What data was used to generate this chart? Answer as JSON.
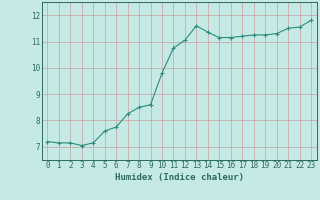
{
  "x": [
    0,
    1,
    2,
    3,
    4,
    5,
    6,
    7,
    8,
    9,
    10,
    11,
    12,
    13,
    14,
    15,
    16,
    17,
    18,
    19,
    20,
    21,
    22,
    23
  ],
  "y": [
    7.2,
    7.15,
    7.15,
    7.05,
    7.15,
    7.6,
    7.75,
    8.25,
    8.5,
    8.6,
    9.8,
    10.75,
    11.05,
    11.6,
    11.35,
    11.15,
    11.15,
    11.2,
    11.25,
    11.25,
    11.3,
    11.5,
    11.55,
    11.8
  ],
  "line_color": "#2e8b7a",
  "marker": "+",
  "markersize": 3,
  "linewidth": 0.8,
  "bg_color": "#c5eae6",
  "grid_color": "#c8a0a0",
  "xlabel": "Humidex (Indice chaleur)",
  "ylabel": "",
  "title": "",
  "xlim": [
    -0.5,
    23.5
  ],
  "ylim": [
    6.5,
    12.5
  ],
  "yticks": [
    7,
    8,
    9,
    10,
    11,
    12
  ],
  "xticks": [
    0,
    1,
    2,
    3,
    4,
    5,
    6,
    7,
    8,
    9,
    10,
    11,
    12,
    13,
    14,
    15,
    16,
    17,
    18,
    19,
    20,
    21,
    22,
    23
  ],
  "tick_color": "#2e6b5a",
  "label_color": "#2e6b5a",
  "xlabel_fontsize": 6.5,
  "tick_fontsize": 5.5
}
